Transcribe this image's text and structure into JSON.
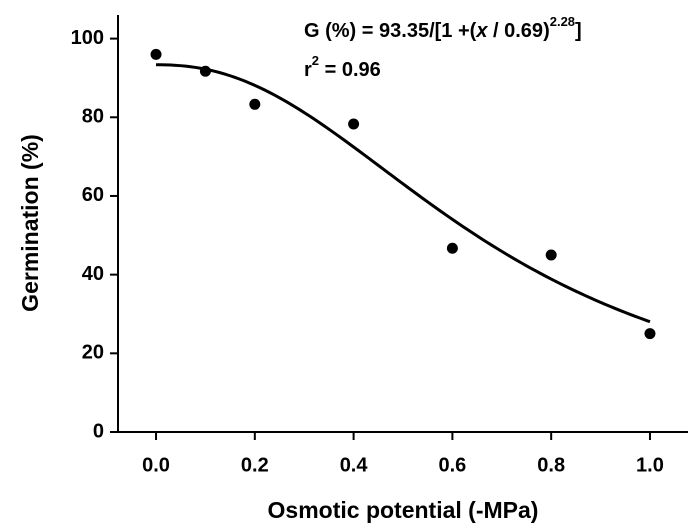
{
  "chart_data": {
    "type": "scatter",
    "x_label": "Osmotic potential (-MPa)",
    "y_label": "Germination (%)",
    "x": [
      0,
      0.1,
      0.2,
      0.4,
      0.6,
      0.8,
      1.0
    ],
    "values": [
      96,
      91.7,
      83.3,
      78.3,
      46.7,
      45,
      25
    ],
    "color": "#000000",
    "xlim": [
      -0.077,
      1.077
    ],
    "ylim": [
      0,
      106
    ],
    "xticks": [
      {
        "value": 0,
        "label": "0.0"
      },
      0.2,
      0.4,
      0.6,
      0.8,
      {
        "value": 1,
        "label": "1.0"
      }
    ],
    "yticks": [
      0,
      20,
      40,
      60,
      80,
      100
    ],
    "grid": false,
    "fit": {
      "a": 93.35,
      "x50": 0.69,
      "b": 2.28,
      "r2": 0.96
    },
    "equation": {
      "lhs": "G (%) = ",
      "mid": "/[1 +(",
      "var": "x",
      "div": " / ",
      "close": ")",
      "end": "]"
    },
    "r2_label": {
      "r": "r",
      "exp": "2",
      "eq": " = "
    }
  }
}
